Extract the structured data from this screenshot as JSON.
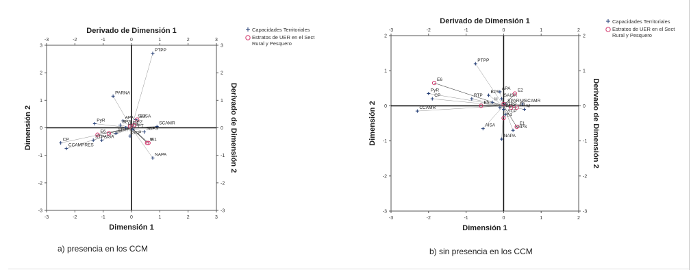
{
  "legend": {
    "cap": "Capacidades Territoriales",
    "est": [
      "Estratos de UER en el Sect",
      "Rural y Pesquero"
    ],
    "cap_color": "#1f3a73",
    "est_color": "#d23a6e"
  },
  "chart_data": [
    {
      "type": "scatter",
      "caption": "a) presencia en los CCM",
      "title": "Derivado de Dimensión 1",
      "xlabel": "Dimensión 1",
      "ylabel": "Dimensión 2",
      "ylabel_right": "Derivado de Dimensión 2",
      "xlim": [
        -3,
        3
      ],
      "ylim": [
        -3,
        3
      ],
      "ticks": [
        "-3",
        "-2",
        "-1",
        "0",
        "1",
        "2",
        "3"
      ],
      "capacidades": [
        {
          "label": "PTPP",
          "x": 0.75,
          "y": 2.7
        },
        {
          "label": "PARNA",
          "x": -0.65,
          "y": 1.15
        },
        {
          "label": "PyR",
          "x": -1.3,
          "y": 0.15
        },
        {
          "label": "APA",
          "x": -0.3,
          "y": 0.25
        },
        {
          "label": "BPS",
          "x": -0.4,
          "y": 0.1
        },
        {
          "label": "H",
          "x": -0.2,
          "y": 0.0
        },
        {
          "label": "SAISA",
          "x": 0.15,
          "y": 0.3
        },
        {
          "label": "SPTPP",
          "x": -0.55,
          "y": -0.2
        },
        {
          "label": "PPT",
          "x": 0.05,
          "y": -0.05
        },
        {
          "label": "SCAMR",
          "x": 0.9,
          "y": 0.05
        },
        {
          "label": "SBPS",
          "x": 0.45,
          "y": -0.15
        },
        {
          "label": "SCP",
          "x": -0.05,
          "y": -0.3
        },
        {
          "label": "AISA",
          "x": -1.05,
          "y": -0.45
        },
        {
          "label": "RTP",
          "x": -1.35,
          "y": -0.45
        },
        {
          "label": "CP",
          "x": -2.5,
          "y": -0.55
        },
        {
          "label": "CCAMPRES",
          "x": -2.3,
          "y": -0.75
        },
        {
          "label": "NAPA",
          "x": 0.75,
          "y": -1.1
        }
      ],
      "estratos": [
        {
          "label": "E3",
          "x": 0.2,
          "y": 0.3
        },
        {
          "label": "E2",
          "x": 0.1,
          "y": 0.1
        },
        {
          "label": "E4",
          "x": -0.05,
          "y": 0.05
        },
        {
          "label": "E6",
          "x": -1.2,
          "y": -0.25
        },
        {
          "label": "",
          "x": -0.8,
          "y": -0.2
        },
        {
          "label": "M",
          "x": 0.55,
          "y": -0.55
        },
        {
          "label": "E1",
          "x": 0.6,
          "y": -0.55
        }
      ]
    },
    {
      "type": "scatter",
      "caption": "b) sin presencia en los CCM",
      "title": "Derivado de Dimensión 1",
      "xlabel": "Dimensión 1",
      "ylabel": "Dimensión 2",
      "ylabel_right": "Derivado de Dimensión 2",
      "xlim": [
        -3,
        2
      ],
      "ylim": [
        -3,
        2
      ],
      "ticks_x": [
        "-3",
        "-2",
        "-1",
        "0",
        "1",
        "2"
      ],
      "ticks_y": [
        "-3",
        "-2",
        "-1",
        "0",
        "1",
        "2"
      ],
      "capacidades": [
        {
          "label": "PTPP",
          "x": -0.75,
          "y": 1.2
        },
        {
          "label": "PyR",
          "x": -2.0,
          "y": 0.35
        },
        {
          "label": "CP",
          "x": -1.9,
          "y": 0.2
        },
        {
          "label": "CCAMR",
          "x": -2.3,
          "y": -0.15
        },
        {
          "label": "BPS",
          "x": -0.4,
          "y": 0.3
        },
        {
          "label": "APA",
          "x": -0.1,
          "y": 0.4
        },
        {
          "label": "RTP",
          "x": -0.85,
          "y": 0.2
        },
        {
          "label": "SAISA",
          "x": -0.05,
          "y": 0.2
        },
        {
          "label": "H",
          "x": -0.3,
          "y": 0.1
        },
        {
          "label": "SPARNA",
          "x": 0.05,
          "y": 0.05
        },
        {
          "label": "SCAMR",
          "x": 0.5,
          "y": 0.05
        },
        {
          "label": "M",
          "x": 0.55,
          "y": -0.1
        },
        {
          "label": "SPTPP",
          "x": -0.1,
          "y": -0.05
        },
        {
          "label": "PT",
          "x": 0.0,
          "y": -0.1
        },
        {
          "label": "SCP",
          "x": 0.05,
          "y": -0.25
        },
        {
          "label": "AISA",
          "x": -0.55,
          "y": -0.65
        },
        {
          "label": "SBPS",
          "x": 0.25,
          "y": -0.7
        },
        {
          "label": "NAPA",
          "x": -0.05,
          "y": -0.95
        }
      ],
      "estratos": [
        {
          "label": "E6",
          "x": -1.85,
          "y": 0.65
        },
        {
          "label": "E2",
          "x": 0.3,
          "y": 0.35
        },
        {
          "label": "E5",
          "x": -0.6,
          "y": 0.0
        },
        {
          "label": "",
          "x": 0.0,
          "y": 0.05
        },
        {
          "label": "",
          "x": 0.2,
          "y": -0.05
        },
        {
          "label": "E3",
          "x": 0.35,
          "y": -0.05
        },
        {
          "label": "E4",
          "x": 0.0,
          "y": -0.35
        },
        {
          "label": "E1",
          "x": 0.35,
          "y": -0.6
        }
      ]
    }
  ]
}
